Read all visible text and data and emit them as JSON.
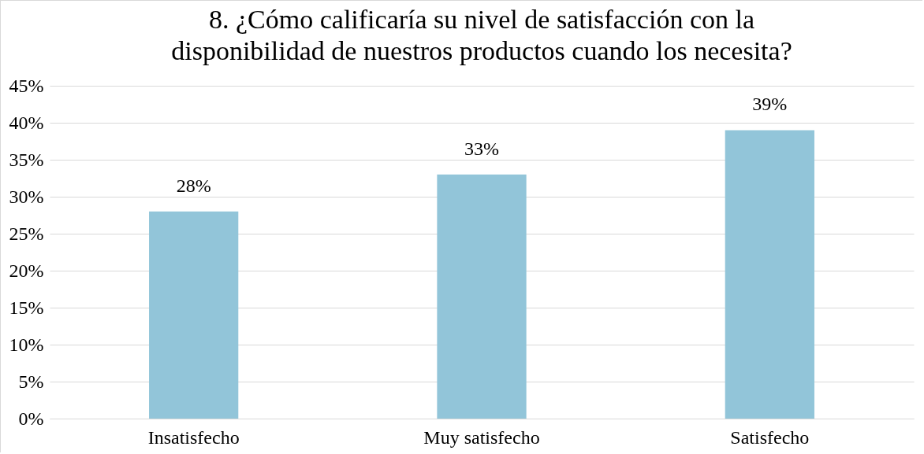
{
  "chart_data": {
    "type": "bar",
    "title": "8. ¿Cómo calificaría su nivel de satisfacción con la disponibilidad de nuestros productos cuando los necesita?",
    "categories": [
      "Insatisfecho",
      "Muy satisfecho",
      "Satisfecho"
    ],
    "values": [
      28,
      33,
      39
    ],
    "value_labels": [
      "28%",
      "33%",
      "39%"
    ],
    "color": "#92c5d9",
    "ylim": [
      0,
      45
    ],
    "yticks": [
      {
        "value": 0,
        "label": "0%"
      },
      {
        "value": 5,
        "label": "5%"
      },
      {
        "value": 10,
        "label": "10%"
      },
      {
        "value": 15,
        "label": "15%"
      },
      {
        "value": 20,
        "label": "20%"
      },
      {
        "value": 25,
        "label": "25%"
      },
      {
        "value": 30,
        "label": "30%"
      },
      {
        "value": 35,
        "label": "35%"
      },
      {
        "value": 40,
        "label": "40%"
      },
      {
        "value": 45,
        "label": "45%"
      }
    ],
    "grid": "y"
  }
}
